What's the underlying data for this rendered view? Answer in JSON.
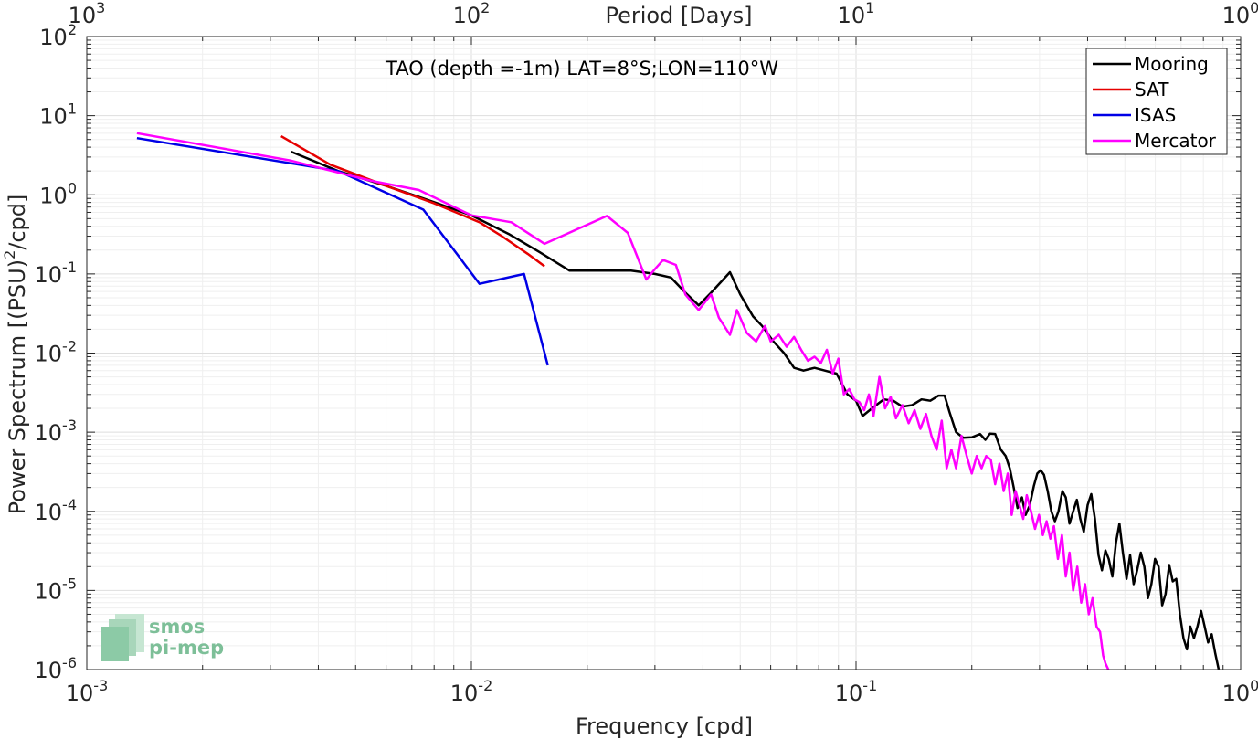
{
  "chart_data": {
    "type": "line",
    "title": "TAO (depth =-1m) LAT=8°S;LON=110°W",
    "xlabel": "Frequency [cpd]",
    "ylabel": "Power Spectrum [(PSU)2/cpd]",
    "top_axis_label": "Period [Days]",
    "x_scale": "log",
    "y_scale": "log",
    "xlim": [
      0.001,
      1
    ],
    "ylim": [
      1e-06,
      100
    ],
    "grid": true,
    "legend_position": "top-right",
    "x_ticks": [
      {
        "value": 0.001,
        "base": "10",
        "exp": "-3"
      },
      {
        "value": 0.01,
        "base": "10",
        "exp": "-2"
      },
      {
        "value": 0.1,
        "base": "10",
        "exp": "-1"
      },
      {
        "value": 1,
        "base": "10",
        "exp": "0"
      }
    ],
    "y_ticks": [
      {
        "value": 1e-06,
        "base": "10",
        "exp": "-6"
      },
      {
        "value": 1e-05,
        "base": "10",
        "exp": "-5"
      },
      {
        "value": 0.0001,
        "base": "10",
        "exp": "-4"
      },
      {
        "value": 0.001,
        "base": "10",
        "exp": "-3"
      },
      {
        "value": 0.01,
        "base": "10",
        "exp": "-2"
      },
      {
        "value": 0.1,
        "base": "10",
        "exp": "-1"
      },
      {
        "value": 1,
        "base": "10",
        "exp": "0"
      },
      {
        "value": 10,
        "base": "10",
        "exp": "1"
      },
      {
        "value": 100,
        "base": "10",
        "exp": "2"
      }
    ],
    "top_ticks": [
      {
        "value": 0.001,
        "base": "10",
        "exp": "3"
      },
      {
        "value": 0.01,
        "base": "10",
        "exp": "2"
      },
      {
        "value": 0.1,
        "base": "10",
        "exp": "1"
      },
      {
        "value": 1,
        "base": "10",
        "exp": "0"
      }
    ],
    "series": [
      {
        "name": "Mooring",
        "color": "#000000",
        "points": [
          [
            0.0034,
            3.5
          ],
          [
            0.0045,
            2.0
          ],
          [
            0.006,
            1.3
          ],
          [
            0.0075,
            0.9
          ],
          [
            0.01,
            0.55
          ],
          [
            0.0125,
            0.32
          ],
          [
            0.015,
            0.19
          ],
          [
            0.018,
            0.11
          ],
          [
            0.02,
            0.11
          ],
          [
            0.026,
            0.11
          ],
          [
            0.03,
            0.1
          ],
          [
            0.033,
            0.09
          ],
          [
            0.036,
            0.058
          ],
          [
            0.039,
            0.04
          ],
          [
            0.042,
            0.058
          ],
          [
            0.047,
            0.105
          ],
          [
            0.05,
            0.055
          ],
          [
            0.054,
            0.029
          ],
          [
            0.057,
            0.022
          ],
          [
            0.061,
            0.014
          ],
          [
            0.065,
            0.01
          ],
          [
            0.069,
            0.0065
          ],
          [
            0.073,
            0.006
          ],
          [
            0.078,
            0.0065
          ],
          [
            0.083,
            0.006
          ],
          [
            0.089,
            0.0055
          ],
          [
            0.095,
            0.003
          ],
          [
            0.1,
            0.0025
          ],
          [
            0.104,
            0.0016
          ],
          [
            0.11,
            0.002
          ],
          [
            0.118,
            0.0026
          ],
          [
            0.125,
            0.0025
          ],
          [
            0.132,
            0.0021
          ],
          [
            0.14,
            0.0022
          ],
          [
            0.148,
            0.0026
          ],
          [
            0.156,
            0.0025
          ],
          [
            0.164,
            0.0029
          ],
          [
            0.17,
            0.0029
          ],
          [
            0.175,
            0.0018
          ],
          [
            0.182,
            0.001
          ],
          [
            0.19,
            0.00085
          ],
          [
            0.2,
            0.00086
          ],
          [
            0.21,
            0.00095
          ],
          [
            0.217,
            0.0008
          ],
          [
            0.223,
            0.00096
          ],
          [
            0.23,
            0.00095
          ],
          [
            0.238,
            0.0006
          ],
          [
            0.245,
            0.0005
          ],
          [
            0.251,
            0.00035
          ],
          [
            0.257,
            0.0002
          ],
          [
            0.263,
            0.00011
          ],
          [
            0.27,
            0.00015
          ],
          [
            0.276,
            9e-05
          ],
          [
            0.283,
            0.00012
          ],
          [
            0.29,
            0.00021
          ],
          [
            0.296,
            0.0003
          ],
          [
            0.302,
            0.00033
          ],
          [
            0.308,
            0.00029
          ],
          [
            0.315,
            0.00018
          ],
          [
            0.322,
            0.0001
          ],
          [
            0.329,
            7.5e-05
          ],
          [
            0.336,
            0.0001
          ],
          [
            0.344,
            0.00018
          ],
          [
            0.351,
            0.00015
          ],
          [
            0.359,
            7e-05
          ],
          [
            0.367,
            0.0001
          ],
          [
            0.375,
            0.00014
          ],
          [
            0.383,
            8e-05
          ],
          [
            0.391,
            5.5e-05
          ],
          [
            0.4,
            0.00012
          ],
          [
            0.409,
            0.000165
          ],
          [
            0.418,
            8e-05
          ],
          [
            0.427,
            2.8e-05
          ],
          [
            0.436,
            1.8e-05
          ],
          [
            0.445,
            3.2e-05
          ],
          [
            0.454,
            2.5e-05
          ],
          [
            0.464,
            1.5e-05
          ],
          [
            0.474,
            4e-05
          ],
          [
            0.484,
            7e-05
          ],
          [
            0.494,
            3e-05
          ],
          [
            0.505,
            1.4e-05
          ],
          [
            0.516,
            2.8e-05
          ],
          [
            0.527,
            1.2e-05
          ],
          [
            0.538,
            1.8e-05
          ],
          [
            0.55,
            3e-05
          ],
          [
            0.562,
            2e-05
          ],
          [
            0.574,
            8e-06
          ],
          [
            0.586,
            1.2e-05
          ],
          [
            0.599,
            2.5e-05
          ],
          [
            0.612,
            2e-05
          ],
          [
            0.625,
            6.5e-06
          ],
          [
            0.638,
            9e-06
          ],
          [
            0.652,
            2.1e-05
          ],
          [
            0.666,
            1.3e-05
          ],
          [
            0.68,
            1.4e-05
          ],
          [
            0.695,
            5e-06
          ],
          [
            0.71,
            2.5e-06
          ],
          [
            0.725,
            1.8e-06
          ],
          [
            0.74,
            3.5e-06
          ],
          [
            0.756,
            2.5e-06
          ],
          [
            0.772,
            3.5e-06
          ],
          [
            0.789,
            5.5e-06
          ],
          [
            0.806,
            3.5e-06
          ],
          [
            0.823,
            2.2e-06
          ],
          [
            0.841,
            2.8e-06
          ],
          [
            0.859,
            1.6e-06
          ],
          [
            0.877,
            1e-06
          ]
        ]
      },
      {
        "name": "SAT",
        "color": "#e60000",
        "points": [
          [
            0.0032,
            5.5
          ],
          [
            0.0043,
            2.4
          ],
          [
            0.006,
            1.3
          ],
          [
            0.008,
            0.78
          ],
          [
            0.0105,
            0.45
          ],
          [
            0.012,
            0.3
          ],
          [
            0.014,
            0.18
          ],
          [
            0.0155,
            0.125
          ]
        ]
      },
      {
        "name": "ISAS",
        "color": "#0000e6",
        "points": [
          [
            0.00135,
            5.2
          ],
          [
            0.0045,
            2.0
          ],
          [
            0.0075,
            0.65
          ],
          [
            0.0105,
            0.075
          ],
          [
            0.0137,
            0.1
          ],
          [
            0.0158,
            0.007
          ]
        ]
      },
      {
        "name": "Mercator",
        "color": "#ff00ff",
        "points": [
          [
            0.00135,
            6.0
          ],
          [
            0.0034,
            2.7
          ],
          [
            0.0055,
            1.5
          ],
          [
            0.0073,
            1.15
          ],
          [
            0.01,
            0.55
          ],
          [
            0.0127,
            0.45
          ],
          [
            0.0155,
            0.24
          ],
          [
            0.0225,
            0.54
          ],
          [
            0.0255,
            0.33
          ],
          [
            0.0285,
            0.085
          ],
          [
            0.03,
            0.115
          ],
          [
            0.0315,
            0.15
          ],
          [
            0.034,
            0.13
          ],
          [
            0.036,
            0.055
          ],
          [
            0.039,
            0.035
          ],
          [
            0.042,
            0.055
          ],
          [
            0.044,
            0.028
          ],
          [
            0.047,
            0.017
          ],
          [
            0.049,
            0.035
          ],
          [
            0.052,
            0.018
          ],
          [
            0.055,
            0.014
          ],
          [
            0.058,
            0.022
          ],
          [
            0.06,
            0.014
          ],
          [
            0.063,
            0.017
          ],
          [
            0.066,
            0.012
          ],
          [
            0.069,
            0.016
          ],
          [
            0.072,
            0.011
          ],
          [
            0.075,
            0.008
          ],
          [
            0.078,
            0.009
          ],
          [
            0.081,
            0.0075
          ],
          [
            0.084,
            0.011
          ],
          [
            0.087,
            0.0055
          ],
          [
            0.09,
            0.0085
          ],
          [
            0.093,
            0.003
          ],
          [
            0.096,
            0.0035
          ],
          [
            0.099,
            0.0026
          ],
          [
            0.102,
            0.0024
          ],
          [
            0.105,
            0.0019
          ],
          [
            0.108,
            0.003
          ],
          [
            0.111,
            0.0016
          ],
          [
            0.115,
            0.005
          ],
          [
            0.119,
            0.002
          ],
          [
            0.123,
            0.0028
          ],
          [
            0.127,
            0.0015
          ],
          [
            0.132,
            0.0022
          ],
          [
            0.137,
            0.0013
          ],
          [
            0.142,
            0.0019
          ],
          [
            0.147,
            0.0011
          ],
          [
            0.152,
            0.0017
          ],
          [
            0.157,
            0.0009
          ],
          [
            0.162,
            0.0006
          ],
          [
            0.167,
            0.0014
          ],
          [
            0.172,
            0.00035
          ],
          [
            0.177,
            0.0006
          ],
          [
            0.182,
            0.00035
          ],
          [
            0.188,
            0.0009
          ],
          [
            0.194,
            0.0005
          ],
          [
            0.2,
            0.0003
          ],
          [
            0.206,
            0.0005
          ],
          [
            0.212,
            0.00035
          ],
          [
            0.218,
            0.0005
          ],
          [
            0.224,
            0.00045
          ],
          [
            0.23,
            0.00022
          ],
          [
            0.236,
            0.0004
          ],
          [
            0.242,
            0.00018
          ],
          [
            0.248,
            0.0003
          ],
          [
            0.254,
            9e-05
          ],
          [
            0.26,
            0.00018
          ],
          [
            0.266,
            0.00012
          ],
          [
            0.272,
            8e-05
          ],
          [
            0.278,
            0.00016
          ],
          [
            0.285,
            0.0001
          ],
          [
            0.292,
            6e-05
          ],
          [
            0.299,
            9e-05
          ],
          [
            0.306,
            5e-05
          ],
          [
            0.313,
            7.5e-05
          ],
          [
            0.32,
            4.5e-05
          ],
          [
            0.327,
            6.5e-05
          ],
          [
            0.335,
            2.5e-05
          ],
          [
            0.343,
            5e-05
          ],
          [
            0.351,
            1.5e-05
          ],
          [
            0.359,
            3e-05
          ],
          [
            0.367,
            1e-05
          ],
          [
            0.376,
            2e-05
          ],
          [
            0.385,
            7e-06
          ],
          [
            0.394,
            1.2e-05
          ],
          [
            0.403,
            5e-06
          ],
          [
            0.412,
            8e-06
          ],
          [
            0.422,
            3.5e-06
          ],
          [
            0.431,
            3e-06
          ],
          [
            0.439,
            1.5e-06
          ],
          [
            0.445,
            1.2e-06
          ],
          [
            0.453,
            1e-06
          ]
        ]
      }
    ]
  },
  "logo": {
    "line1": "smos",
    "line2": "pi-mep",
    "color": "#7dbf98"
  }
}
